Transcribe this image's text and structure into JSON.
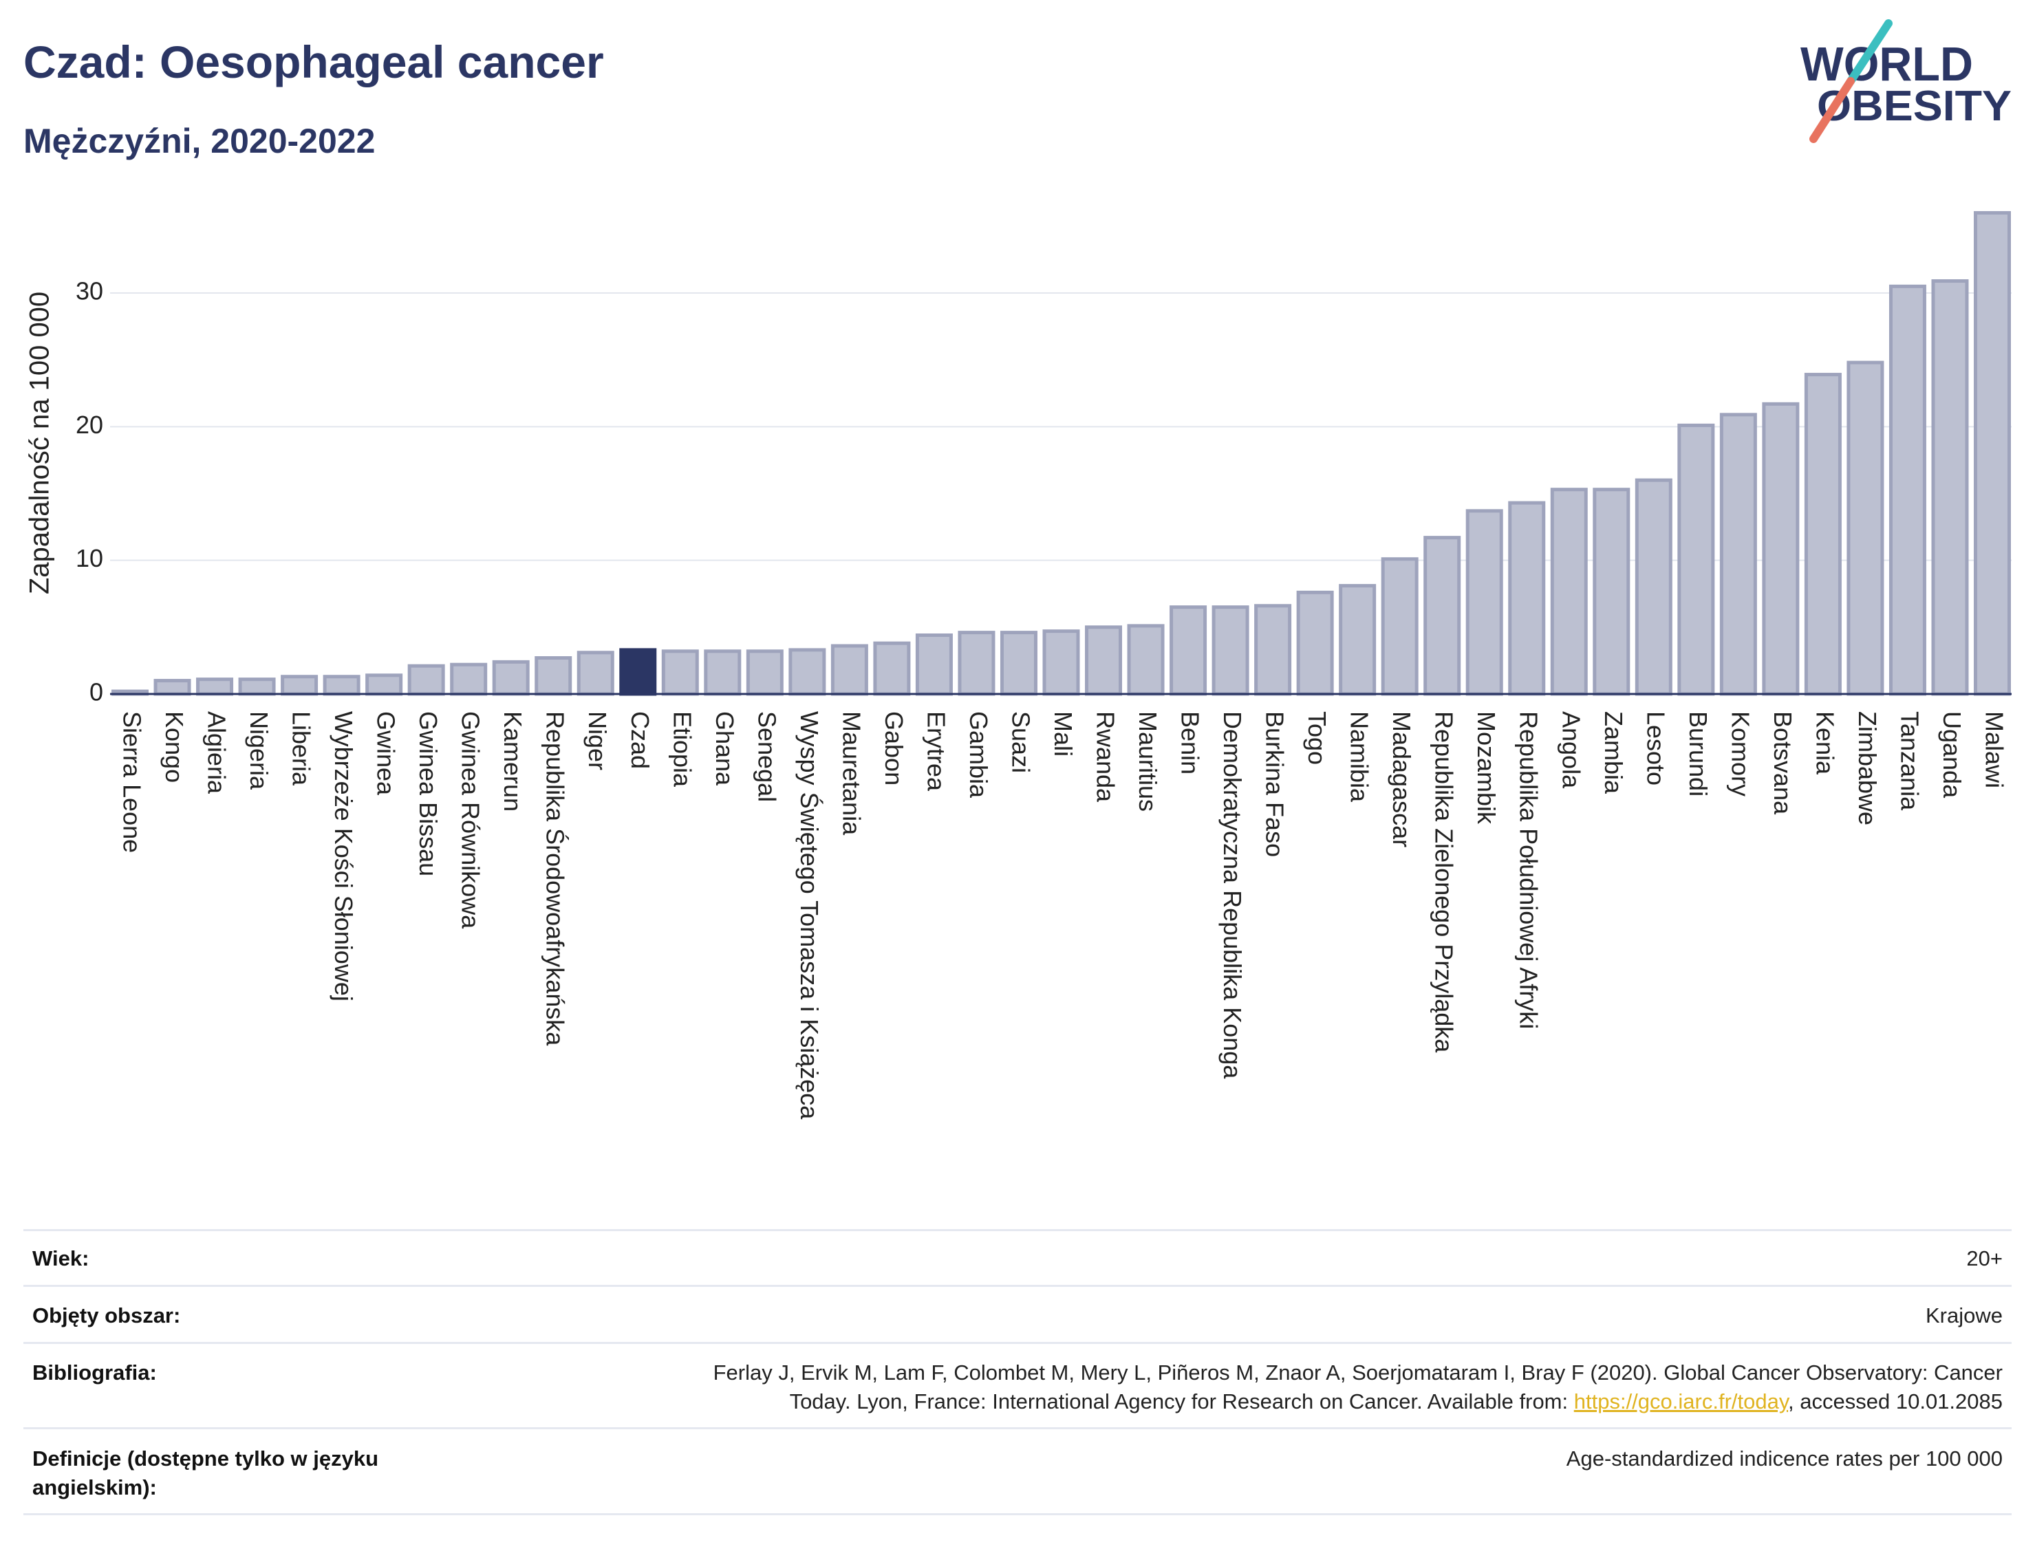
{
  "title": "Czad: Oesophageal cancer",
  "subtitle": "Mężczyźni, 2020-2022",
  "logo": {
    "line1": "WORLD",
    "line2": "OBESITY"
  },
  "colors": {
    "title": "#2b3664",
    "bar": "#bcc0d1",
    "bar_outline": "#9ea3bc",
    "highlight": "#2b3664",
    "gridline": "#e3e6ee",
    "baseline": "#2b3664",
    "link": "#e0b31f",
    "logo_teal": "#3bbfc0",
    "logo_red": "#e8735f"
  },
  "chart_data": {
    "type": "bar",
    "xlabel": "",
    "ylabel": "Zapadalność na 100 000",
    "ylim": [
      0,
      37
    ],
    "yticks": [
      0,
      10,
      20,
      30
    ],
    "grid": true,
    "highlight": "Czad",
    "categories": [
      "Sierra Leone",
      "Kongo",
      "Algieria",
      "Nigeria",
      "Liberia",
      "Wybrzeże Kości Słoniowej",
      "Gwinea",
      "Gwinea Bissau",
      "Gwinea Równikowa",
      "Kamerun",
      "Republika Środowoafrykańska",
      "Niger",
      "Czad",
      "Etiopia",
      "Ghana",
      "Senegal",
      "Wyspy Świętego Tomasza i Książęca",
      "Mauretania",
      "Gabon",
      "Erytrea",
      "Gambia",
      "Suazi",
      "Mali",
      "Rwanda",
      "Mauritius",
      "Benin",
      "Demokratyczna Republika Konga",
      "Burkina Faso",
      "Togo",
      "Namibia",
      "Madagascar",
      "Republika Zielonego Przylądka",
      "Mozambik",
      "Republika Południowej Afryki",
      "Angola",
      "Zambia",
      "Lesoto",
      "Burundi",
      "Komory",
      "Botsvana",
      "Kenia",
      "Zimbabwe",
      "Tanzania",
      "Uganda",
      "Malawi"
    ],
    "values": [
      0.2,
      1.0,
      1.1,
      1.1,
      1.3,
      1.3,
      1.4,
      2.1,
      2.2,
      2.4,
      2.7,
      3.1,
      3.3,
      3.2,
      3.2,
      3.2,
      3.3,
      3.6,
      3.8,
      4.4,
      4.6,
      4.6,
      4.7,
      5.0,
      5.1,
      6.5,
      6.5,
      6.6,
      7.6,
      8.1,
      10.1,
      11.7,
      13.7,
      14.3,
      15.3,
      15.3,
      16.0,
      20.1,
      20.9,
      21.7,
      23.9,
      24.8,
      30.5,
      30.9,
      36.0
    ]
  },
  "info_table": [
    {
      "label": "Wiek:",
      "value": "20+"
    },
    {
      "label": "Objęty obszar:",
      "value": "Krajowe"
    },
    {
      "label": "Bibliografia:",
      "value": {
        "line1": "Ferlay J, Ervik M, Lam F, Colombet M, Mery L, Piñeros M, Znaor A, Soerjomataram I, Bray F (2020). Global Cancer Observatory: Cancer",
        "line2_prefix": "Today. Lyon, France: International Agency for Research on Cancer. Available from: ",
        "link": "https://gco.iarc.fr/today",
        "line2_suffix": ", accessed 10.01.2085"
      }
    },
    {
      "label": "Definicje (dostępne tylko w języku angielskim):",
      "value": "Age-standardized indicence rates per 100 000"
    }
  ]
}
